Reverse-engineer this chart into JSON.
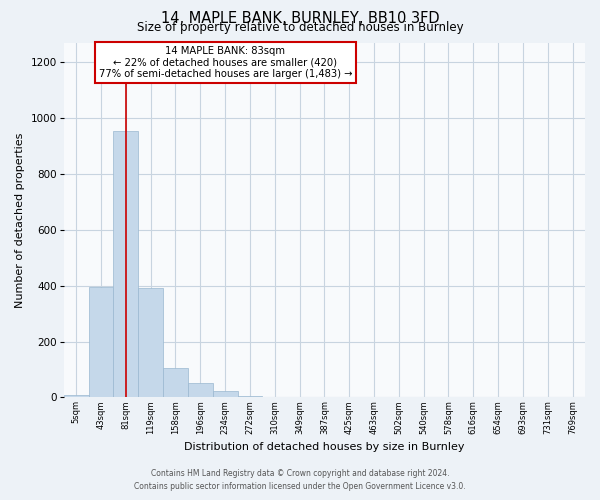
{
  "title": "14, MAPLE BANK, BURNLEY, BB10 3FD",
  "subtitle": "Size of property relative to detached houses in Burnley",
  "xlabel": "Distribution of detached houses by size in Burnley",
  "ylabel": "Number of detached properties",
  "bar_color": "#c5d8ea",
  "bar_edge_color": "#9ab8d0",
  "annotation_line_color": "#cc0000",
  "annotation_box_edge_color": "#cc0000",
  "annotation_text_line1": "14 MAPLE BANK: 83sqm",
  "annotation_text_line2": "← 22% of detached houses are smaller (420)",
  "annotation_text_line3": "77% of semi-detached houses are larger (1,483) →",
  "marker_x": "81sqm",
  "ylim": [
    0,
    1270
  ],
  "yticks": [
    0,
    200,
    400,
    600,
    800,
    1000,
    1200
  ],
  "categories": [
    "5sqm",
    "43sqm",
    "81sqm",
    "119sqm",
    "158sqm",
    "196sqm",
    "234sqm",
    "272sqm",
    "310sqm",
    "349sqm",
    "387sqm",
    "425sqm",
    "463sqm",
    "502sqm",
    "540sqm",
    "578sqm",
    "616sqm",
    "654sqm",
    "693sqm",
    "731sqm",
    "769sqm"
  ],
  "values": [
    10,
    395,
    955,
    390,
    105,
    52,
    22,
    5,
    0,
    0,
    0,
    0,
    0,
    0,
    0,
    0,
    0,
    0,
    0,
    0,
    0
  ],
  "footer_line1": "Contains HM Land Registry data © Crown copyright and database right 2024.",
  "footer_line2": "Contains public sector information licensed under the Open Government Licence v3.0.",
  "background_color": "#edf2f7",
  "plot_background_color": "#f8fafc",
  "grid_color": "#c8d4e0"
}
